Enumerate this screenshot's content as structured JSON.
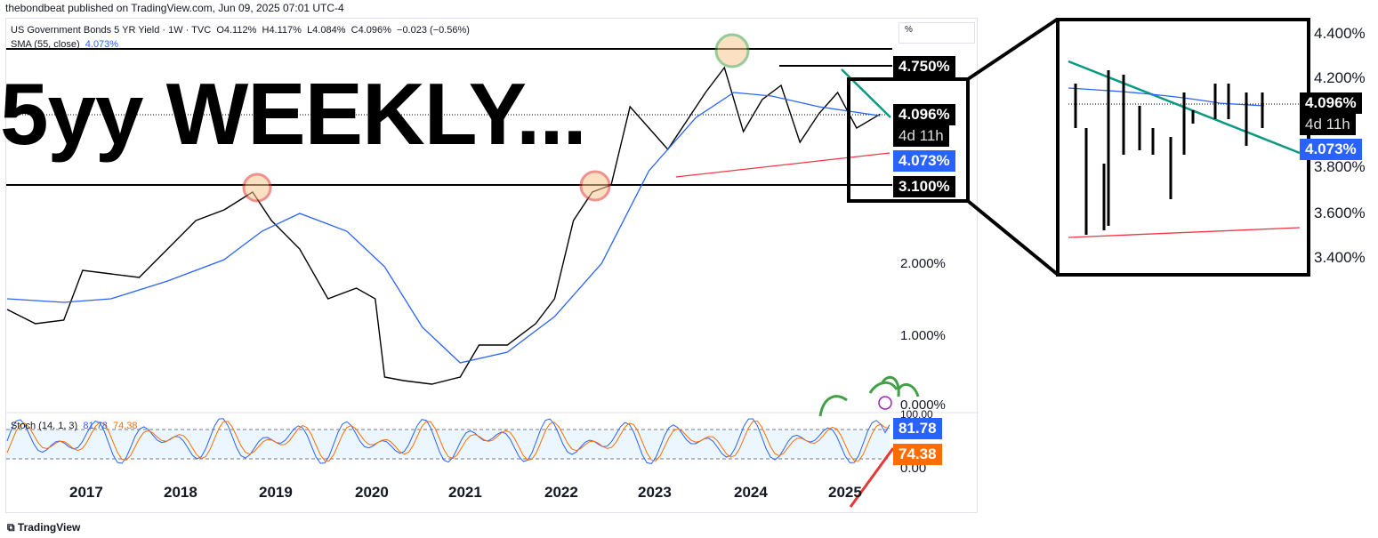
{
  "publisher": "thebondbeat published on TradingView.com, Jun 09, 2025 07:01 UTC-4",
  "legend": {
    "symbol": "US Government Bonds 5 YR Yield · 1W · TVC",
    "open": "O4.112%",
    "high": "H4.117%",
    "low": "L4.084%",
    "close": "C4.096%",
    "change": "−0.023 (−0.56%)",
    "sma_label": "SMA (55, close)",
    "sma_value": "4.073%"
  },
  "stoch_legend": {
    "label": "Stoch (14, 1, 3)",
    "k": "81.78",
    "d": "74.38"
  },
  "overlay_title": "5yy WEEKLY...",
  "percent_toggle": "%",
  "price_tags": {
    "level_high": "4.750%",
    "last": "4.096%",
    "countdown": "4d 11h",
    "sma": "4.073%",
    "level_low": "3.100%"
  },
  "stoch_tags": {
    "k": "81.78",
    "d": "74.38"
  },
  "y_ticks": [
    "2.000%",
    "1.000%",
    "0.000%"
  ],
  "stoch_ticks": [
    "100.00",
    "0.00"
  ],
  "x_ticks": [
    "2017",
    "2018",
    "2019",
    "2020",
    "2021",
    "2022",
    "2023",
    "2024",
    "2025"
  ],
  "zoom": {
    "y_ticks": [
      "4.400%",
      "4.200%",
      "3.800%",
      "3.600%",
      "3.400%"
    ],
    "last": "4.096%",
    "countdown": "4d 11h",
    "sma": "4.073%"
  },
  "brand": "TradingView",
  "colors": {
    "price": "#000000",
    "sma": "#2962ff",
    "trend_down": "#089981",
    "trend_up": "#f23645",
    "stoch_k": "#2962ff",
    "stoch_d": "#ff6d00",
    "highlight_red": "#e53935",
    "highlight_green": "#43a047"
  },
  "chart_data": [
    {
      "type": "line",
      "title": "US Government Bonds 5 YR Yield",
      "series": [
        {
          "name": "US Government Bonds 5 YR Yield",
          "x": [
            2016.2,
            2016.5,
            2016.8,
            2017.0,
            2017.3,
            2017.6,
            2017.9,
            2018.2,
            2018.5,
            2018.8,
            2019.0,
            2019.3,
            2019.6,
            2019.9,
            2020.1,
            2020.2,
            2020.4,
            2020.7,
            2021.0,
            2021.2,
            2021.5,
            2021.8,
            2022.0,
            2022.2,
            2022.4,
            2022.6,
            2022.8,
            2023.0,
            2023.2,
            2023.4,
            2023.6,
            2023.8,
            2024.0,
            2024.2,
            2024.4,
            2024.6,
            2024.8,
            2025.0,
            2025.2,
            2025.45
          ],
          "values": [
            1.35,
            1.15,
            1.2,
            1.9,
            1.85,
            1.8,
            2.2,
            2.6,
            2.75,
            3.0,
            2.6,
            2.2,
            1.5,
            1.65,
            1.5,
            0.4,
            0.35,
            0.3,
            0.4,
            0.85,
            0.85,
            1.15,
            1.5,
            2.6,
            3.0,
            3.1,
            4.2,
            3.9,
            3.6,
            4.0,
            4.4,
            4.75,
            3.85,
            4.3,
            4.5,
            3.7,
            4.1,
            4.4,
            3.9,
            4.096
          ]
        },
        {
          "name": "SMA (55, close)",
          "x": [
            2016.2,
            2016.8,
            2017.3,
            2017.9,
            2018.5,
            2018.9,
            2019.3,
            2019.8,
            2020.2,
            2020.6,
            2021.0,
            2021.5,
            2022.0,
            2022.5,
            2023.0,
            2023.5,
            2023.9,
            2024.3,
            2024.8,
            2025.45
          ],
          "values": [
            1.5,
            1.45,
            1.5,
            1.75,
            2.05,
            2.45,
            2.7,
            2.45,
            1.95,
            1.1,
            0.6,
            0.75,
            1.25,
            2.0,
            3.3,
            4.05,
            4.4,
            4.35,
            4.2,
            4.073
          ]
        }
      ],
      "ylim": [
        0,
        5
      ],
      "xlim": [
        2016.2,
        2025.55
      ],
      "levels": [
        4.75,
        3.1
      ]
    },
    {
      "type": "line",
      "title": "Stoch (14, 1, 3)",
      "series": [
        {
          "name": "K",
          "last": 81.78
        },
        {
          "name": "D",
          "last": 74.38
        }
      ],
      "ylim": [
        0,
        100
      ],
      "bands": [
        80,
        20
      ]
    }
  ]
}
